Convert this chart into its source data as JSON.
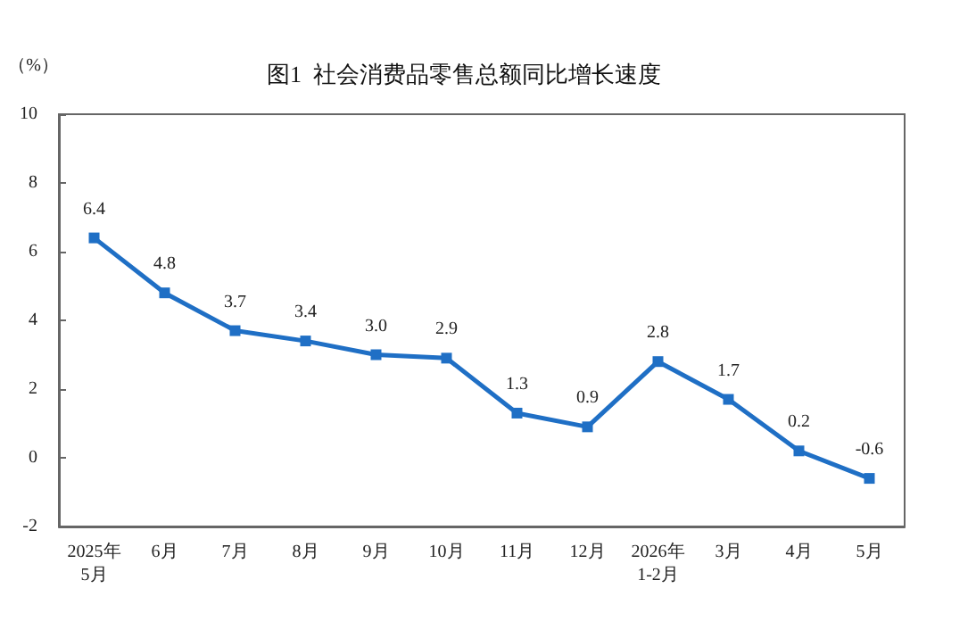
{
  "chart_data": {
    "type": "line",
    "title": "图1  社会消费品零售总额同比增长速度",
    "ylabel": "（%）",
    "categories": [
      "2025年\n5月",
      "6月",
      "7月",
      "8月",
      "9月",
      "10月",
      "11月",
      "12月",
      "2026年\n1-2月",
      "3月",
      "4月",
      "5月"
    ],
    "series": [
      {
        "color": "#1f6fc5",
        "values": [
          6.4,
          4.8,
          3.7,
          3.4,
          3.0,
          2.9,
          1.3,
          0.9,
          2.8,
          1.7,
          0.2,
          -0.6
        ],
        "value_labels": [
          "6.4",
          "4.8",
          "3.7",
          "3.4",
          "3.0",
          "2.9",
          "1.3",
          "0.9",
          "2.8",
          "1.7",
          "0.2",
          "-0.6"
        ]
      }
    ],
    "ylim": [
      -2,
      10
    ],
    "yticks": [
      -2,
      0,
      2,
      4,
      6,
      8,
      10
    ],
    "marker": "square",
    "line_style": "solid"
  }
}
